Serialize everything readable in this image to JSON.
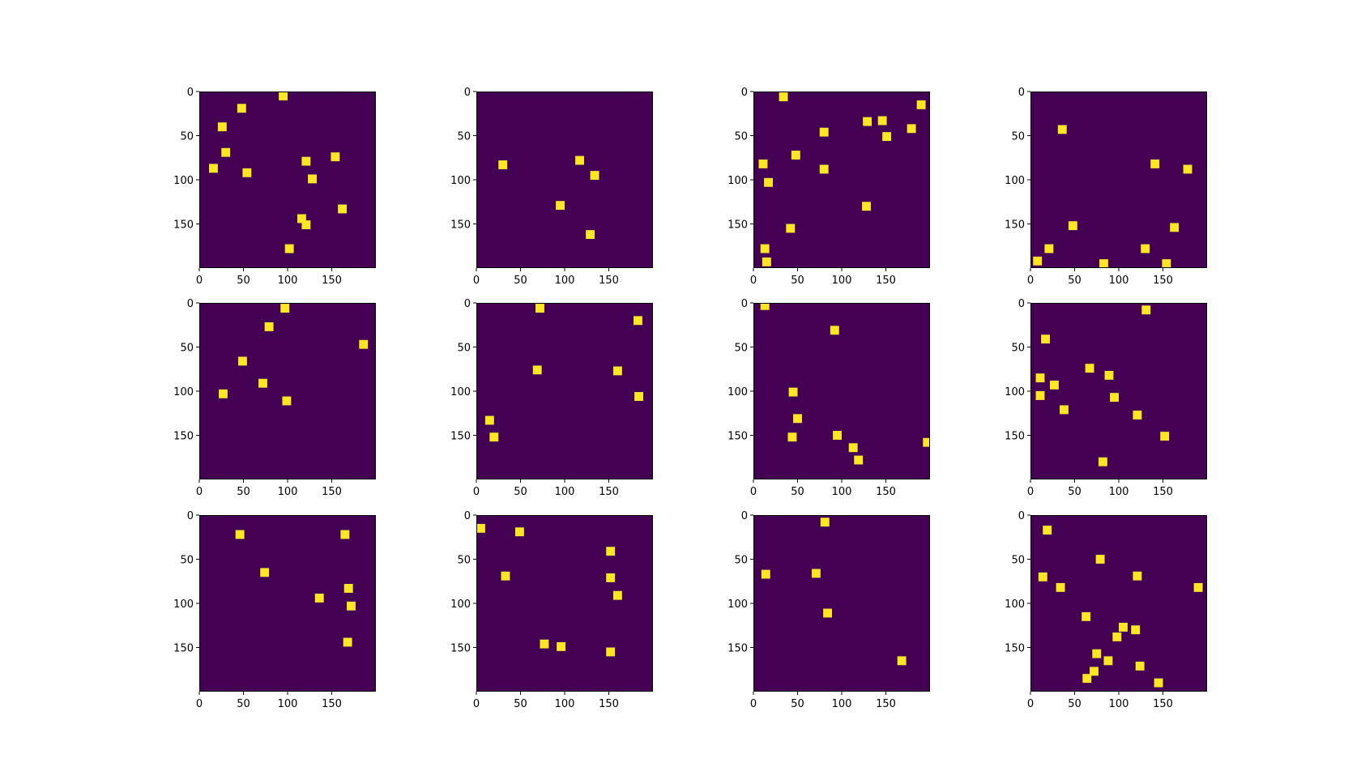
{
  "figure": {
    "rows": 3,
    "cols": 4,
    "colors": {
      "background": "#440154",
      "square": "#fde725",
      "axis": "#000000"
    }
  },
  "chart_data": [
    {
      "type": "heatmap",
      "panel": 1,
      "xlim": [
        0,
        200
      ],
      "ylim": [
        200,
        0
      ],
      "x_ticks": [
        0,
        50,
        100,
        150
      ],
      "y_ticks": [
        0,
        50,
        100,
        150
      ],
      "square_size": 10,
      "squares": [
        [
          95,
          5
        ],
        [
          48,
          19
        ],
        [
          26,
          40
        ],
        [
          30,
          69
        ],
        [
          16,
          87
        ],
        [
          54,
          92
        ],
        [
          121,
          79
        ],
        [
          154,
          74
        ],
        [
          128,
          99
        ],
        [
          116,
          144
        ],
        [
          121,
          151
        ],
        [
          162,
          133
        ],
        [
          102,
          178
        ]
      ]
    },
    {
      "type": "heatmap",
      "panel": 2,
      "xlim": [
        0,
        200
      ],
      "ylim": [
        200,
        0
      ],
      "x_ticks": [
        0,
        50,
        100,
        150
      ],
      "y_ticks": [
        0,
        50,
        100,
        150
      ],
      "square_size": 10,
      "squares": [
        [
          30,
          83
        ],
        [
          117,
          78
        ],
        [
          134,
          95
        ],
        [
          95,
          129
        ],
        [
          129,
          162
        ]
      ]
    },
    {
      "type": "heatmap",
      "panel": 3,
      "xlim": [
        0,
        200
      ],
      "ylim": [
        200,
        0
      ],
      "x_ticks": [
        0,
        50,
        100,
        150
      ],
      "y_ticks": [
        0,
        50,
        100,
        150
      ],
      "square_size": 10,
      "squares": [
        [
          34,
          6
        ],
        [
          190,
          15
        ],
        [
          129,
          34
        ],
        [
          146,
          33
        ],
        [
          151,
          51
        ],
        [
          179,
          42
        ],
        [
          80,
          46
        ],
        [
          48,
          72
        ],
        [
          11,
          82
        ],
        [
          17,
          103
        ],
        [
          80,
          88
        ],
        [
          128,
          130
        ],
        [
          42,
          155
        ],
        [
          13,
          178
        ],
        [
          15,
          193
        ]
      ]
    },
    {
      "type": "heatmap",
      "panel": 4,
      "xlim": [
        0,
        200
      ],
      "ylim": [
        200,
        0
      ],
      "x_ticks": [
        0,
        50,
        100,
        150
      ],
      "y_ticks": [
        0,
        50,
        100,
        150
      ],
      "square_size": 10,
      "squares": [
        [
          36,
          43
        ],
        [
          141,
          82
        ],
        [
          178,
          88
        ],
        [
          48,
          152
        ],
        [
          163,
          154
        ],
        [
          130,
          178
        ],
        [
          21,
          178
        ],
        [
          8,
          192
        ],
        [
          83,
          195
        ],
        [
          154,
          195
        ]
      ]
    },
    {
      "type": "heatmap",
      "panel": 5,
      "xlim": [
        0,
        200
      ],
      "ylim": [
        200,
        0
      ],
      "x_ticks": [
        0,
        50,
        100,
        150
      ],
      "y_ticks": [
        0,
        50,
        100,
        150
      ],
      "square_size": 10,
      "squares": [
        [
          97,
          6
        ],
        [
          79,
          27
        ],
        [
          186,
          47
        ],
        [
          49,
          66
        ],
        [
          72,
          91
        ],
        [
          27,
          103
        ],
        [
          99,
          111
        ]
      ]
    },
    {
      "type": "heatmap",
      "panel": 6,
      "xlim": [
        0,
        200
      ],
      "ylim": [
        200,
        0
      ],
      "x_ticks": [
        0,
        50,
        100,
        150
      ],
      "y_ticks": [
        0,
        50,
        100,
        150
      ],
      "square_size": 10,
      "squares": [
        [
          72,
          6
        ],
        [
          183,
          20
        ],
        [
          69,
          76
        ],
        [
          160,
          77
        ],
        [
          184,
          106
        ],
        [
          15,
          133
        ],
        [
          20,
          152
        ]
      ]
    },
    {
      "type": "heatmap",
      "panel": 7,
      "xlim": [
        0,
        200
      ],
      "ylim": [
        200,
        0
      ],
      "x_ticks": [
        0,
        50,
        100,
        150
      ],
      "y_ticks": [
        0,
        50,
        100,
        150
      ],
      "square_size": 10,
      "squares": [
        [
          13,
          3
        ],
        [
          92,
          31
        ],
        [
          45,
          101
        ],
        [
          50,
          131
        ],
        [
          44,
          152
        ],
        [
          95,
          150
        ],
        [
          113,
          164
        ],
        [
          119,
          178
        ],
        [
          197,
          158
        ]
      ]
    },
    {
      "type": "heatmap",
      "panel": 8,
      "xlim": [
        0,
        200
      ],
      "ylim": [
        200,
        0
      ],
      "x_ticks": [
        0,
        50,
        100,
        150
      ],
      "y_ticks": [
        0,
        50,
        100,
        150
      ],
      "square_size": 10,
      "squares": [
        [
          131,
          8
        ],
        [
          17,
          41
        ],
        [
          11,
          85
        ],
        [
          27,
          93
        ],
        [
          67,
          74
        ],
        [
          89,
          82
        ],
        [
          95,
          107
        ],
        [
          11,
          105
        ],
        [
          38,
          121
        ],
        [
          121,
          127
        ],
        [
          152,
          151
        ],
        [
          82,
          180
        ]
      ]
    },
    {
      "type": "heatmap",
      "panel": 9,
      "xlim": [
        0,
        200
      ],
      "ylim": [
        200,
        0
      ],
      "x_ticks": [
        0,
        50,
        100,
        150
      ],
      "y_ticks": [
        0,
        50,
        100,
        150
      ],
      "square_size": 10,
      "squares": [
        [
          46,
          22
        ],
        [
          165,
          22
        ],
        [
          74,
          65
        ],
        [
          169,
          83
        ],
        [
          136,
          94
        ],
        [
          172,
          103
        ],
        [
          168,
          144
        ]
      ]
    },
    {
      "type": "heatmap",
      "panel": 10,
      "xlim": [
        0,
        200
      ],
      "ylim": [
        200,
        0
      ],
      "x_ticks": [
        0,
        50,
        100,
        150
      ],
      "y_ticks": [
        0,
        50,
        100,
        150
      ],
      "square_size": 10,
      "squares": [
        [
          5,
          15
        ],
        [
          49,
          19
        ],
        [
          33,
          69
        ],
        [
          152,
          41
        ],
        [
          152,
          71
        ],
        [
          160,
          91
        ],
        [
          77,
          146
        ],
        [
          96,
          149
        ],
        [
          152,
          155
        ]
      ]
    },
    {
      "type": "heatmap",
      "panel": 11,
      "xlim": [
        0,
        200
      ],
      "ylim": [
        200,
        0
      ],
      "x_ticks": [
        0,
        50,
        100,
        150
      ],
      "y_ticks": [
        0,
        50,
        100,
        150
      ],
      "square_size": 10,
      "squares": [
        [
          81,
          8
        ],
        [
          14,
          67
        ],
        [
          71,
          66
        ],
        [
          84,
          111
        ],
        [
          168,
          165
        ]
      ]
    },
    {
      "type": "heatmap",
      "panel": 12,
      "xlim": [
        0,
        200
      ],
      "ylim": [
        200,
        0
      ],
      "x_ticks": [
        0,
        50,
        100,
        150
      ],
      "y_ticks": [
        0,
        50,
        100,
        150
      ],
      "square_size": 10,
      "squares": [
        [
          19,
          17
        ],
        [
          14,
          70
        ],
        [
          34,
          82
        ],
        [
          79,
          50
        ],
        [
          121,
          69
        ],
        [
          190,
          82
        ],
        [
          63,
          115
        ],
        [
          105,
          127
        ],
        [
          119,
          130
        ],
        [
          98,
          138
        ],
        [
          75,
          157
        ],
        [
          88,
          165
        ],
        [
          72,
          177
        ],
        [
          124,
          171
        ],
        [
          64,
          185
        ],
        [
          145,
          190
        ]
      ]
    }
  ]
}
